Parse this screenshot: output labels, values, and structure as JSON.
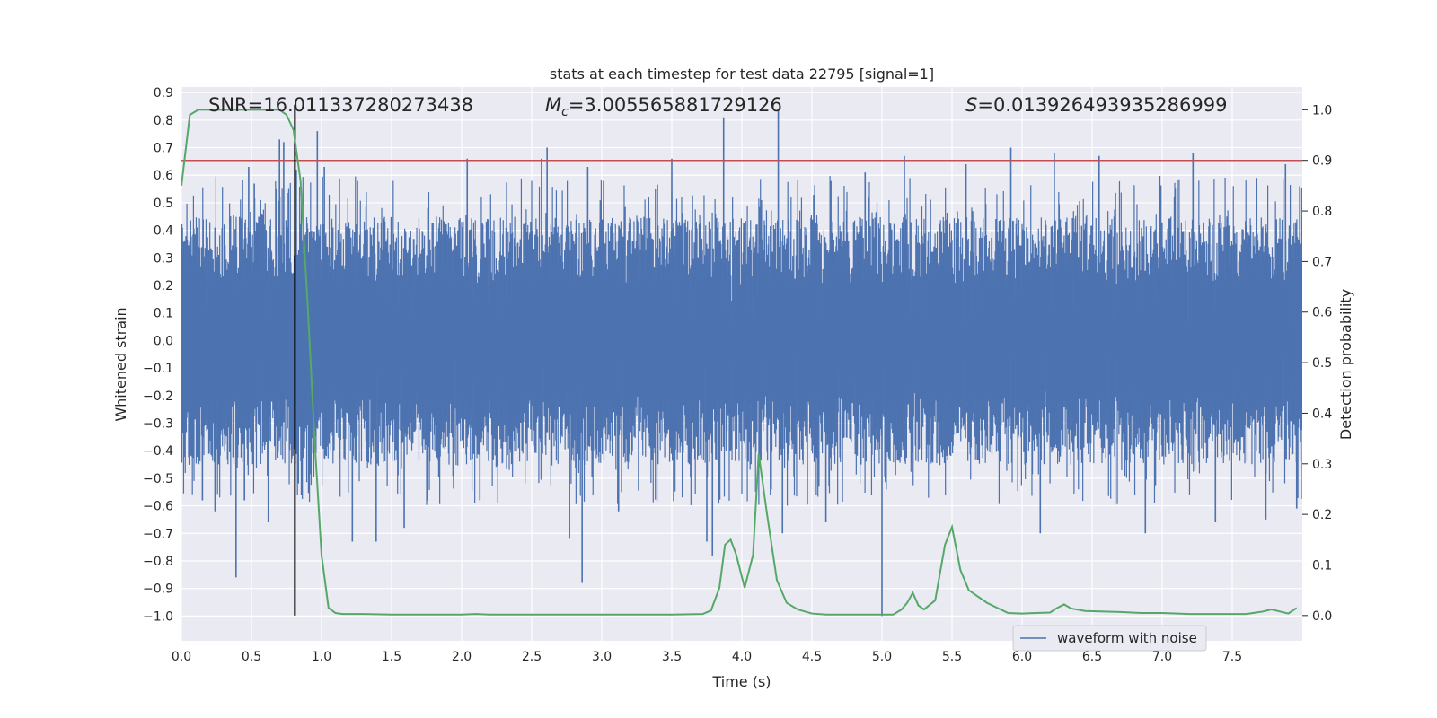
{
  "chart_data": {
    "type": "line",
    "title": "stats at each timestep for test data 22795 [signal=1]",
    "xlabel": "Time (s)",
    "ylabel": "Whitened strain",
    "y2label": "Detection probability",
    "xlim": [
      0.0,
      8.0
    ],
    "ylim": [
      -1.09,
      0.92
    ],
    "y2lim": [
      -0.05,
      1.045
    ],
    "xticks": [
      "0.0",
      "0.5",
      "1.0",
      "1.5",
      "2.0",
      "2.5",
      "3.0",
      "3.5",
      "4.0",
      "4.5",
      "5.0",
      "5.5",
      "6.0",
      "6.5",
      "7.0",
      "7.5"
    ],
    "yticks": [
      "0.9",
      "0.8",
      "0.7",
      "0.6",
      "0.5",
      "0.4",
      "0.3",
      "0.2",
      "0.1",
      "0.0",
      "−0.1",
      "−0.2",
      "−0.3",
      "−0.4",
      "−0.5",
      "−0.6",
      "−0.7",
      "−0.8",
      "−0.9",
      "−1.0"
    ],
    "y2ticks": [
      "1.0",
      "0.9",
      "0.8",
      "0.7",
      "0.6",
      "0.5",
      "0.4",
      "0.3",
      "0.2",
      "0.1",
      "0.0"
    ],
    "annotations": {
      "snr": "SNR=16.011337280273438",
      "mc_symbol": "M",
      "mc_subscript": "c",
      "mc_value": "=3.005565881729126",
      "s_symbol": "S",
      "s_value": "=0.013926493935286999"
    },
    "threshold": 0.9,
    "marker_time": 0.81,
    "legend": {
      "label": "waveform with noise",
      "position": "lower-right"
    },
    "series": [
      {
        "name": "waveform with noise",
        "axis": "left",
        "color": "#4c72b0",
        "typical_envelope": [
          -0.45,
          0.45
        ],
        "spikes": [
          {
            "x": 0.15,
            "y": -0.58
          },
          {
            "x": 0.24,
            "y": -0.62
          },
          {
            "x": 0.39,
            "y": -0.86
          },
          {
            "x": 0.45,
            "y": -0.58
          },
          {
            "x": 0.48,
            "y": 0.63
          },
          {
            "x": 0.52,
            "y": 0.57
          },
          {
            "x": 0.62,
            "y": -0.66
          },
          {
            "x": 0.7,
            "y": 0.73
          },
          {
            "x": 0.73,
            "y": 0.72
          },
          {
            "x": 0.82,
            "y": 0.62
          },
          {
            "x": 0.97,
            "y": 0.76
          },
          {
            "x": 1.02,
            "y": 0.63
          },
          {
            "x": 1.22,
            "y": -0.73
          },
          {
            "x": 1.39,
            "y": -0.73
          },
          {
            "x": 1.59,
            "y": -0.68
          },
          {
            "x": 2.04,
            "y": 0.66
          },
          {
            "x": 2.13,
            "y": -0.58
          },
          {
            "x": 2.57,
            "y": 0.66
          },
          {
            "x": 2.61,
            "y": 0.7
          },
          {
            "x": 2.77,
            "y": -0.72
          },
          {
            "x": 2.86,
            "y": -0.88
          },
          {
            "x": 2.9,
            "y": 0.63
          },
          {
            "x": 3.12,
            "y": -0.62
          },
          {
            "x": 3.5,
            "y": 0.66
          },
          {
            "x": 3.75,
            "y": -0.73
          },
          {
            "x": 3.79,
            "y": -0.78
          },
          {
            "x": 3.87,
            "y": 0.81
          },
          {
            "x": 4.26,
            "y": 0.84
          },
          {
            "x": 4.29,
            "y": -0.7
          },
          {
            "x": 4.6,
            "y": -0.66
          },
          {
            "x": 4.88,
            "y": 0.61
          },
          {
            "x": 5.0,
            "y": -1.0
          },
          {
            "x": 5.16,
            "y": 0.67
          },
          {
            "x": 5.6,
            "y": 0.64
          },
          {
            "x": 5.92,
            "y": 0.7
          },
          {
            "x": 6.13,
            "y": -0.7
          },
          {
            "x": 6.23,
            "y": 0.68
          },
          {
            "x": 6.55,
            "y": 0.67
          },
          {
            "x": 6.88,
            "y": -0.7
          },
          {
            "x": 7.22,
            "y": 0.68
          },
          {
            "x": 7.38,
            "y": -0.66
          },
          {
            "x": 7.74,
            "y": -0.65
          },
          {
            "x": 7.88,
            "y": 0.64
          },
          {
            "x": 7.96,
            "y": -0.61
          }
        ]
      },
      {
        "name": "detection probability",
        "axis": "right",
        "color": "#55a868",
        "x": [
          0.0,
          0.06,
          0.12,
          0.2,
          0.4,
          0.6,
          0.7,
          0.75,
          0.8,
          0.85,
          0.9,
          0.95,
          1.0,
          1.05,
          1.1,
          1.15,
          1.2,
          1.3,
          1.5,
          1.7,
          2.0,
          2.1,
          2.2,
          2.5,
          3.0,
          3.5,
          3.72,
          3.78,
          3.84,
          3.88,
          3.92,
          3.96,
          4.02,
          4.08,
          4.12,
          4.18,
          4.25,
          4.32,
          4.4,
          4.5,
          4.6,
          4.8,
          5.0,
          5.08,
          5.14,
          5.18,
          5.22,
          5.26,
          5.3,
          5.38,
          5.45,
          5.5,
          5.56,
          5.62,
          5.75,
          5.9,
          6.0,
          6.1,
          6.2,
          6.25,
          6.3,
          6.35,
          6.45,
          6.7,
          6.85,
          7.0,
          7.2,
          7.4,
          7.6,
          7.72,
          7.78,
          7.84,
          7.9,
          7.96
        ],
        "values": [
          0.85,
          0.99,
          1.0,
          1.0,
          1.0,
          1.0,
          1.0,
          0.99,
          0.96,
          0.86,
          0.62,
          0.35,
          0.12,
          0.015,
          0.005,
          0.003,
          0.003,
          0.003,
          0.002,
          0.002,
          0.002,
          0.003,
          0.002,
          0.002,
          0.002,
          0.002,
          0.003,
          0.01,
          0.055,
          0.14,
          0.15,
          0.12,
          0.055,
          0.12,
          0.32,
          0.2,
          0.07,
          0.025,
          0.012,
          0.004,
          0.002,
          0.002,
          0.002,
          0.002,
          0.012,
          0.025,
          0.045,
          0.02,
          0.012,
          0.03,
          0.14,
          0.175,
          0.09,
          0.05,
          0.025,
          0.005,
          0.004,
          0.005,
          0.006,
          0.015,
          0.022,
          0.014,
          0.009,
          0.007,
          0.005,
          0.005,
          0.003,
          0.003,
          0.003,
          0.008,
          0.012,
          0.008,
          0.004,
          0.015
        ]
      }
    ]
  }
}
